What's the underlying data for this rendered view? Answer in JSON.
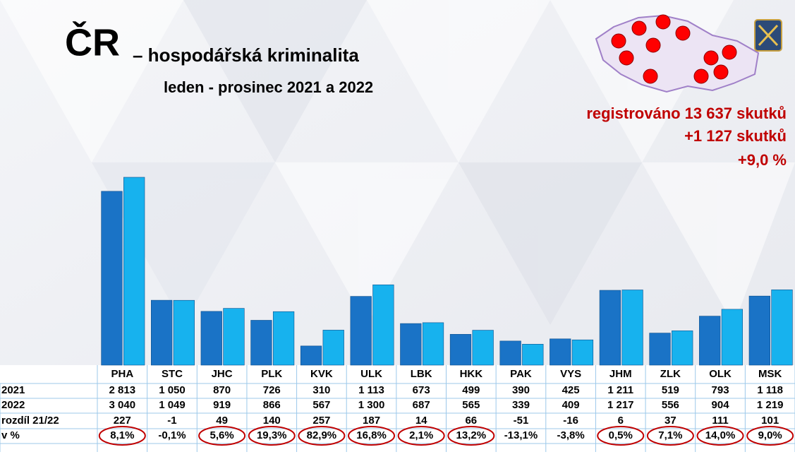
{
  "chart_data": {
    "type": "bar",
    "title": "ČR",
    "title_suffix": "– hospodářská kriminalita",
    "subtitle": "leden - prosinec 2021 a 2022",
    "annotations": [
      "registrováno 13 637 skutků",
      "+1 127 skutků",
      "+9,0 %"
    ],
    "categories": [
      "PHA",
      "STC",
      "JHC",
      "PLK",
      "KVK",
      "ULK",
      "LBK",
      "HKK",
      "PAK",
      "VYS",
      "JHM",
      "ZLK",
      "OLK",
      "MSK"
    ],
    "series": [
      {
        "name": "2021",
        "color": "#1a73c6",
        "values": [
          2813,
          1050,
          870,
          726,
          310,
          1113,
          673,
          499,
          390,
          425,
          1211,
          519,
          793,
          1118
        ],
        "value_labels": [
          "2 813",
          "1 050",
          "870",
          "726",
          "310",
          "1 113",
          "673",
          "499",
          "390",
          "425",
          "1 211",
          "519",
          "793",
          "1 118"
        ]
      },
      {
        "name": "2022",
        "color": "#17b2ee",
        "values": [
          3040,
          1049,
          919,
          866,
          567,
          1300,
          687,
          565,
          339,
          409,
          1217,
          556,
          904,
          1219
        ],
        "value_labels": [
          "3 040",
          "1 049",
          "919",
          "866",
          "567",
          "1 300",
          "687",
          "565",
          "339",
          "409",
          "1 217",
          "556",
          "904",
          "1 219"
        ]
      }
    ],
    "differences": {
      "name": "rozdíl 21/22",
      "values": [
        227,
        -1,
        49,
        140,
        257,
        187,
        14,
        66,
        -51,
        -16,
        6,
        37,
        111,
        101
      ]
    },
    "percent_changes": {
      "name": "v %",
      "values": [
        8.1,
        -0.1,
        5.6,
        19.3,
        82.9,
        16.8,
        2.1,
        13.2,
        -13.1,
        -3.8,
        0.5,
        7.1,
        14.0,
        9.0
      ],
      "value_labels": [
        "8,1%",
        "-0,1%",
        "5,6%",
        "19,3%",
        "82,9%",
        "16,8%",
        "2,1%",
        "13,2%",
        "-13,1%",
        "-3,8%",
        "0,5%",
        "7,1%",
        "14,0%",
        "9,0%"
      ]
    }
  }
}
